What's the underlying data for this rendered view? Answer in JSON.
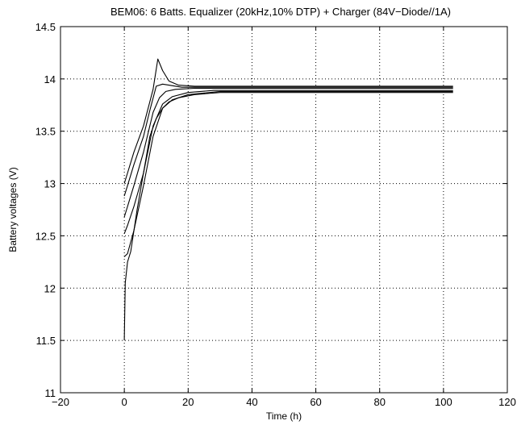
{
  "chart_data": {
    "type": "line",
    "title": "BEM06: 6 Batts. Equalizer (20kHz,10% DTP) + Charger (84V−Diode//1A)",
    "xlabel": "Time (h)",
    "ylabel": "Battery voltages (V)",
    "xlim": [
      -20,
      120
    ],
    "ylim": [
      11,
      14.5
    ],
    "xticks": [
      -20,
      0,
      20,
      40,
      60,
      80,
      100,
      120
    ],
    "yticks": [
      11,
      11.5,
      12,
      12.5,
      13,
      13.5,
      14,
      14.5
    ],
    "xtick_labels": [
      "−20",
      "0",
      "20",
      "40",
      "60",
      "80",
      "100",
      "120"
    ],
    "ytick_labels": [
      "11",
      "11.5",
      "12",
      "12.5",
      "13",
      "13.5",
      "14",
      "14.5"
    ],
    "grid": true,
    "series": [
      {
        "x": [
          0,
          1,
          3,
          6,
          9,
          10.5,
          12,
          14,
          17,
          22,
          30,
          103
        ],
        "y": [
          13.0,
          13.1,
          13.3,
          13.55,
          13.9,
          14.19,
          14.08,
          13.98,
          13.94,
          13.93,
          13.93,
          13.93
        ]
      },
      {
        "x": [
          0,
          1,
          3,
          6,
          8,
          10,
          12,
          14,
          18,
          25,
          103
        ],
        "y": [
          12.88,
          12.98,
          13.18,
          13.45,
          13.7,
          13.93,
          13.95,
          13.94,
          13.92,
          13.92,
          13.92
        ]
      },
      {
        "x": [
          0,
          1,
          3,
          6,
          9,
          11,
          13,
          16,
          22,
          30,
          103
        ],
        "y": [
          12.68,
          12.78,
          12.98,
          13.3,
          13.68,
          13.82,
          13.88,
          13.9,
          13.91,
          13.91,
          13.91
        ]
      },
      {
        "x": [
          0,
          1,
          3,
          6,
          9,
          12,
          15,
          20,
          28,
          103
        ],
        "y": [
          12.52,
          12.6,
          12.78,
          13.1,
          13.55,
          13.76,
          13.83,
          13.87,
          13.89,
          13.89
        ]
      },
      {
        "x": [
          0,
          1,
          3,
          6,
          9,
          12,
          15,
          20,
          30,
          103
        ],
        "y": [
          12.3,
          12.33,
          12.55,
          12.98,
          13.45,
          13.72,
          13.8,
          13.85,
          13.88,
          13.88
        ]
      },
      {
        "x": [
          0,
          0.3,
          1,
          2,
          4,
          6,
          8,
          10,
          12,
          14,
          17,
          22,
          30,
          103
        ],
        "y": [
          11.5,
          12.05,
          12.25,
          12.35,
          12.75,
          13.1,
          13.45,
          13.62,
          13.72,
          13.78,
          13.82,
          13.85,
          13.87,
          13.87
        ]
      }
    ]
  }
}
